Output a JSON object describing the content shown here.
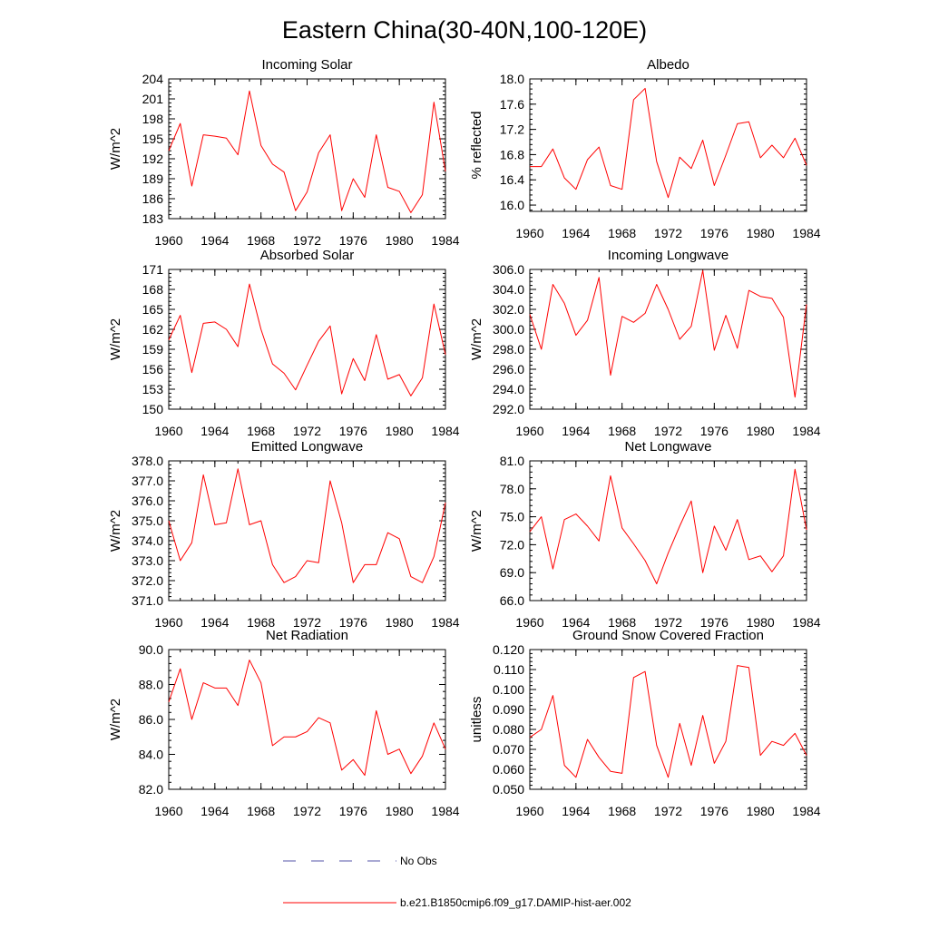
{
  "figure": {
    "title": "Eastern China(30-40N,100-120E)"
  },
  "legend": {
    "entries": [
      {
        "label": "No Obs",
        "color": "#5555aa",
        "style": "dashed"
      },
      {
        "label": "b.e21.B1850cmip6.f09_g17.DAMIP-hist-aer.002",
        "color": "#ff0000",
        "style": "solid"
      }
    ]
  },
  "chart_data": [
    {
      "type": "line",
      "title": "Incoming Solar",
      "ylabel": "W/m^2",
      "xlim": [
        1960,
        1984
      ],
      "ylim": [
        183,
        204
      ],
      "xticks": [
        1960,
        1964,
        1968,
        1972,
        1976,
        1980,
        1984
      ],
      "xtick_labels": [
        "1960",
        "1964",
        "1968",
        "1972",
        "1976",
        "1980",
        "1984"
      ],
      "yticks": [
        183,
        186,
        189,
        192,
        195,
        198,
        201,
        204
      ],
      "ytick_labels": [
        "183",
        "186",
        "189",
        "192",
        "195",
        "198",
        "201",
        "204"
      ],
      "x": [
        1960,
        1961,
        1962,
        1963,
        1964,
        1965,
        1966,
        1967,
        1968,
        1969,
        1970,
        1971,
        1972,
        1973,
        1974,
        1975,
        1976,
        1977,
        1978,
        1979,
        1980,
        1981,
        1982,
        1983,
        1984
      ],
      "series": [
        {
          "color": "#ff0000",
          "values": [
            193.2,
            197.3,
            187.9,
            195.6,
            195.4,
            195.1,
            192.6,
            202.2,
            194.0,
            191.2,
            190.0,
            184.2,
            187.0,
            192.9,
            195.6,
            184.2,
            189.0,
            186.2,
            195.6,
            187.7,
            187.1,
            183.9,
            186.6,
            200.5,
            190.1
          ]
        }
      ]
    },
    {
      "type": "line",
      "title": "Albedo",
      "ylabel": "% reflected",
      "xlim": [
        1960,
        1984
      ],
      "ylim": [
        15.9,
        18.0
      ],
      "xticks": [
        1960,
        1964,
        1968,
        1972,
        1976,
        1980,
        1984
      ],
      "xtick_labels": [
        "1960",
        "1964",
        "1968",
        "1972",
        "1976",
        "1980",
        "1984"
      ],
      "yticks": [
        16.0,
        16.4,
        16.8,
        17.2,
        17.6,
        18.0
      ],
      "ytick_labels": [
        "16.0",
        "16.4",
        "16.8",
        "17.2",
        "17.6",
        "18.0"
      ],
      "x": [
        1960,
        1961,
        1962,
        1963,
        1964,
        1965,
        1966,
        1967,
        1968,
        1969,
        1970,
        1971,
        1972,
        1973,
        1974,
        1975,
        1976,
        1977,
        1978,
        1979,
        1980,
        1981,
        1982,
        1983,
        1984
      ],
      "series": [
        {
          "color": "#ff0000",
          "values": [
            16.61,
            16.61,
            16.89,
            16.43,
            16.25,
            16.72,
            16.92,
            16.31,
            16.25,
            17.67,
            17.85,
            16.69,
            16.12,
            16.76,
            16.58,
            17.03,
            16.31,
            16.79,
            17.29,
            17.32,
            16.75,
            16.95,
            16.75,
            17.06,
            16.63
          ]
        }
      ]
    },
    {
      "type": "line",
      "title": "Absorbed Solar",
      "ylabel": "W/m^2",
      "xlim": [
        1960,
        1984
      ],
      "ylim": [
        150,
        171
      ],
      "xticks": [
        1960,
        1964,
        1968,
        1972,
        1976,
        1980,
        1984
      ],
      "xtick_labels": [
        "1960",
        "1964",
        "1968",
        "1972",
        "1976",
        "1980",
        "1984"
      ],
      "yticks": [
        150,
        153,
        156,
        159,
        162,
        165,
        168,
        171
      ],
      "ytick_labels": [
        "150",
        "153",
        "156",
        "159",
        "162",
        "165",
        "168",
        "171"
      ],
      "x": [
        1960,
        1961,
        1962,
        1963,
        1964,
        1965,
        1966,
        1967,
        1968,
        1969,
        1970,
        1971,
        1972,
        1973,
        1974,
        1975,
        1976,
        1977,
        1978,
        1979,
        1980,
        1981,
        1982,
        1983,
        1984
      ],
      "series": [
        {
          "color": "#ff0000",
          "values": [
            160.4,
            164.1,
            155.5,
            162.9,
            163.1,
            162.0,
            159.4,
            168.8,
            162.0,
            156.8,
            155.4,
            152.9,
            156.6,
            160.2,
            162.5,
            152.3,
            157.6,
            154.3,
            161.2,
            154.5,
            155.2,
            152.0,
            154.7,
            165.8,
            158.2
          ]
        }
      ]
    },
    {
      "type": "line",
      "title": "Incoming Longwave",
      "ylabel": "W/m^2",
      "xlim": [
        1960,
        1984
      ],
      "ylim": [
        292,
        306
      ],
      "xticks": [
        1960,
        1964,
        1968,
        1972,
        1976,
        1980,
        1984
      ],
      "xtick_labels": [
        "1960",
        "1964",
        "1968",
        "1972",
        "1976",
        "1980",
        "1984"
      ],
      "yticks": [
        292,
        294,
        296,
        298,
        300,
        302,
        304,
        306
      ],
      "ytick_labels": [
        "292.0",
        "294.0",
        "296.0",
        "298.0",
        "300.0",
        "302.0",
        "304.0",
        "306.0"
      ],
      "x": [
        1960,
        1961,
        1962,
        1963,
        1964,
        1965,
        1966,
        1967,
        1968,
        1969,
        1970,
        1971,
        1972,
        1973,
        1974,
        1975,
        1976,
        1977,
        1978,
        1979,
        1980,
        1981,
        1982,
        1983,
        1984
      ],
      "series": [
        {
          "color": "#ff0000",
          "values": [
            301.5,
            298.0,
            304.5,
            302.6,
            299.4,
            300.9,
            305.2,
            295.4,
            301.3,
            300.7,
            301.6,
            304.5,
            302.0,
            299.0,
            300.3,
            305.9,
            297.9,
            301.4,
            298.1,
            303.9,
            303.3,
            303.1,
            301.2,
            293.2,
            302.5
          ]
        }
      ]
    },
    {
      "type": "line",
      "title": "Emitted Longwave",
      "ylabel": "W/m^2",
      "xlim": [
        1960,
        1984
      ],
      "ylim": [
        371,
        378
      ],
      "xticks": [
        1960,
        1964,
        1968,
        1972,
        1976,
        1980,
        1984
      ],
      "xtick_labels": [
        "1960",
        "1964",
        "1968",
        "1972",
        "1976",
        "1980",
        "1984"
      ],
      "yticks": [
        371,
        372,
        373,
        374,
        375,
        376,
        377,
        378
      ],
      "ytick_labels": [
        "371.0",
        "372.0",
        "373.0",
        "374.0",
        "375.0",
        "376.0",
        "377.0",
        "378.0"
      ],
      "x": [
        1960,
        1961,
        1962,
        1963,
        1964,
        1965,
        1966,
        1967,
        1968,
        1969,
        1970,
        1971,
        1972,
        1973,
        1974,
        1975,
        1976,
        1977,
        1978,
        1979,
        1980,
        1981,
        1982,
        1983,
        1984
      ],
      "series": [
        {
          "color": "#ff0000",
          "values": [
            375.0,
            373.0,
            373.9,
            377.3,
            374.8,
            374.9,
            377.6,
            374.8,
            375.0,
            372.8,
            371.9,
            372.2,
            373.0,
            372.9,
            377.0,
            374.9,
            371.9,
            372.8,
            372.8,
            374.4,
            374.1,
            372.2,
            371.9,
            373.2,
            375.9
          ]
        }
      ]
    },
    {
      "type": "line",
      "title": "Net Longwave",
      "ylabel": "W/m^2",
      "xlim": [
        1960,
        1984
      ],
      "ylim": [
        66,
        81
      ],
      "xticks": [
        1960,
        1964,
        1968,
        1972,
        1976,
        1980,
        1984
      ],
      "xtick_labels": [
        "1960",
        "1964",
        "1968",
        "1972",
        "1976",
        "1980",
        "1984"
      ],
      "yticks": [
        66,
        69,
        72,
        75,
        78,
        81
      ],
      "ytick_labels": [
        "66.0",
        "69.0",
        "72.0",
        "75.0",
        "78.0",
        "81.0"
      ],
      "x": [
        1960,
        1961,
        1962,
        1963,
        1964,
        1965,
        1966,
        1967,
        1968,
        1969,
        1970,
        1971,
        1972,
        1973,
        1974,
        1975,
        1976,
        1977,
        1978,
        1979,
        1980,
        1981,
        1982,
        1983,
        1984
      ],
      "series": [
        {
          "color": "#ff0000",
          "values": [
            73.4,
            75.0,
            69.4,
            74.7,
            75.3,
            74.0,
            72.4,
            79.4,
            73.8,
            72.1,
            70.3,
            67.8,
            71.1,
            74.0,
            76.7,
            69.0,
            74.0,
            71.4,
            74.7,
            70.4,
            70.8,
            69.1,
            70.8,
            80.1,
            73.6
          ]
        }
      ]
    },
    {
      "type": "line",
      "title": "Net Radiation",
      "ylabel": "W/m^2",
      "xlim": [
        1960,
        1984
      ],
      "ylim": [
        82,
        90
      ],
      "xticks": [
        1960,
        1964,
        1968,
        1972,
        1976,
        1980,
        1984
      ],
      "xtick_labels": [
        "1960",
        "1964",
        "1968",
        "1972",
        "1976",
        "1980",
        "1984"
      ],
      "yticks": [
        82,
        84,
        86,
        88,
        90
      ],
      "ytick_labels": [
        "82.0",
        "84.0",
        "86.0",
        "88.0",
        "90.0"
      ],
      "x": [
        1960,
        1961,
        1962,
        1963,
        1964,
        1965,
        1966,
        1967,
        1968,
        1969,
        1970,
        1971,
        1972,
        1973,
        1974,
        1975,
        1976,
        1977,
        1978,
        1979,
        1980,
        1981,
        1982,
        1983,
        1984
      ],
      "series": [
        {
          "color": "#ff0000",
          "values": [
            87.0,
            88.9,
            86.0,
            88.1,
            87.8,
            87.8,
            86.8,
            89.4,
            88.1,
            84.5,
            85.0,
            85.0,
            85.3,
            86.1,
            85.8,
            83.1,
            83.7,
            82.8,
            86.5,
            84.0,
            84.3,
            82.9,
            83.9,
            85.8,
            84.3
          ]
        }
      ]
    },
    {
      "type": "line",
      "title": "Ground Snow Covered Fraction",
      "ylabel": "unitless",
      "xlim": [
        1960,
        1984
      ],
      "ylim": [
        0.05,
        0.12
      ],
      "xticks": [
        1960,
        1964,
        1968,
        1972,
        1976,
        1980,
        1984
      ],
      "xtick_labels": [
        "1960",
        "1964",
        "1968",
        "1972",
        "1976",
        "1980",
        "1984"
      ],
      "yticks": [
        0.05,
        0.06,
        0.07,
        0.08,
        0.09,
        0.1,
        0.11,
        0.12
      ],
      "ytick_labels": [
        "0.050",
        "0.060",
        "0.070",
        "0.080",
        "0.090",
        "0.100",
        "0.110",
        "0.120"
      ],
      "x": [
        1960,
        1961,
        1962,
        1963,
        1964,
        1965,
        1966,
        1967,
        1968,
        1969,
        1970,
        1971,
        1972,
        1973,
        1974,
        1975,
        1976,
        1977,
        1978,
        1979,
        1980,
        1981,
        1982,
        1983,
        1984
      ],
      "series": [
        {
          "color": "#ff0000",
          "values": [
            0.076,
            0.08,
            0.097,
            0.062,
            0.056,
            0.075,
            0.066,
            0.059,
            0.058,
            0.106,
            0.109,
            0.072,
            0.056,
            0.083,
            0.062,
            0.087,
            0.063,
            0.074,
            0.112,
            0.111,
            0.067,
            0.074,
            0.072,
            0.078,
            0.067
          ]
        }
      ]
    }
  ]
}
